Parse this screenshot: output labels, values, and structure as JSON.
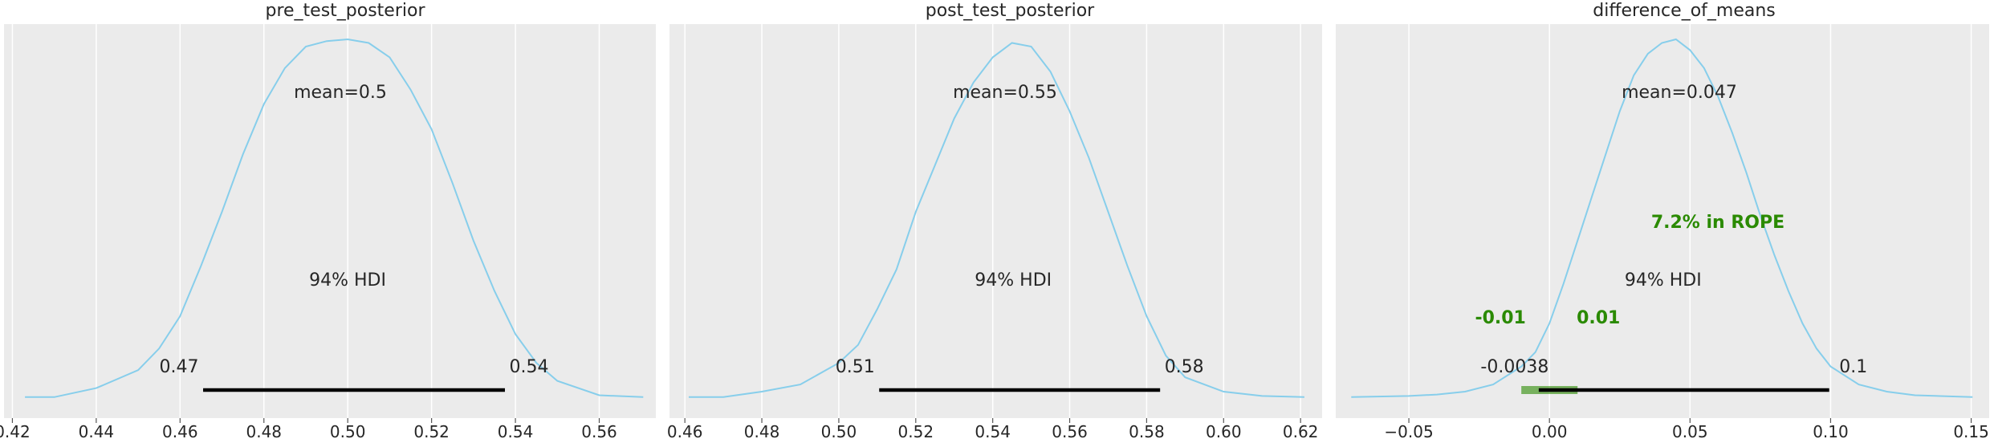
{
  "chart_data": [
    {
      "type": "line",
      "title": "pre_test_posterior",
      "xlim": [
        0.418,
        0.5735
      ],
      "xticks": [
        0.42,
        0.44,
        0.46,
        0.48,
        0.5,
        0.52,
        0.54,
        0.56
      ],
      "xtick_labels": [
        "0.42",
        "0.44",
        "0.46",
        "0.48",
        "0.50",
        "0.52",
        "0.54",
        "0.56"
      ],
      "grid": true,
      "line_color": "#87ceeb",
      "density": {
        "x": [
          0.423,
          0.43,
          0.44,
          0.45,
          0.455,
          0.46,
          0.465,
          0.47,
          0.475,
          0.48,
          0.485,
          0.49,
          0.495,
          0.5,
          0.505,
          0.51,
          0.515,
          0.52,
          0.525,
          0.53,
          0.535,
          0.54,
          0.545,
          0.55,
          0.56,
          0.5705
        ],
        "y": [
          0.005,
          0.005,
          0.03,
          0.08,
          0.14,
          0.23,
          0.37,
          0.52,
          0.68,
          0.82,
          0.92,
          0.98,
          0.995,
          1.0,
          0.99,
          0.95,
          0.86,
          0.75,
          0.6,
          0.44,
          0.3,
          0.18,
          0.1,
          0.05,
          0.01,
          0.005
        ]
      },
      "mean_label": "mean=0.5",
      "hdi_label": "94% HDI",
      "hdi": [
        0.4655,
        0.5375
      ],
      "hdi_low_label": "0.47",
      "hdi_high_label": "0.54"
    },
    {
      "type": "line",
      "title": "post_test_posterior",
      "xlim": [
        0.456,
        0.6256
      ],
      "xticks": [
        0.46,
        0.48,
        0.5,
        0.52,
        0.54,
        0.56,
        0.58,
        0.6,
        0.62
      ],
      "xtick_labels": [
        "0.46",
        "0.48",
        "0.50",
        "0.52",
        "0.54",
        "0.56",
        "0.58",
        "0.60",
        "0.62"
      ],
      "grid": true,
      "line_color": "#87ceeb",
      "density": {
        "x": [
          0.461,
          0.47,
          0.48,
          0.49,
          0.5,
          0.505,
          0.51,
          0.515,
          0.52,
          0.525,
          0.53,
          0.535,
          0.54,
          0.545,
          0.55,
          0.555,
          0.56,
          0.565,
          0.57,
          0.575,
          0.58,
          0.585,
          0.59,
          0.6,
          0.61,
          0.621
        ],
        "y": [
          0.005,
          0.005,
          0.02,
          0.04,
          0.1,
          0.15,
          0.25,
          0.36,
          0.52,
          0.65,
          0.78,
          0.88,
          0.95,
          0.99,
          0.98,
          0.91,
          0.8,
          0.67,
          0.52,
          0.37,
          0.23,
          0.12,
          0.06,
          0.02,
          0.008,
          0.005
        ]
      },
      "mean_label": "mean=0.55",
      "hdi_label": "94% HDI",
      "hdi": [
        0.5105,
        0.5835
      ],
      "hdi_low_label": "0.51",
      "hdi_high_label": "0.58"
    },
    {
      "type": "line",
      "title": "difference_of_means",
      "xlim": [
        -0.076,
        0.1564
      ],
      "xticks": [
        -0.05,
        0.0,
        0.05,
        0.1,
        0.15
      ],
      "xtick_labels": [
        "−0.05",
        "0.00",
        "0.05",
        "0.10",
        "0.15"
      ],
      "grid": true,
      "line_color": "#87ceeb",
      "density": {
        "x": [
          -0.0705,
          -0.05,
          -0.04,
          -0.03,
          -0.02,
          -0.01,
          -0.005,
          0.0,
          0.005,
          0.01,
          0.015,
          0.02,
          0.025,
          0.03,
          0.035,
          0.04,
          0.045,
          0.05,
          0.055,
          0.06,
          0.065,
          0.07,
          0.075,
          0.08,
          0.085,
          0.09,
          0.095,
          0.1,
          0.11,
          0.12,
          0.13,
          0.1505
        ],
        "y": [
          0.005,
          0.008,
          0.012,
          0.02,
          0.04,
          0.09,
          0.13,
          0.21,
          0.32,
          0.44,
          0.56,
          0.68,
          0.8,
          0.9,
          0.96,
          0.99,
          1.0,
          0.97,
          0.92,
          0.84,
          0.74,
          0.63,
          0.51,
          0.4,
          0.3,
          0.21,
          0.14,
          0.09,
          0.04,
          0.02,
          0.01,
          0.005
        ]
      },
      "mean_label": "mean=0.047",
      "hdi_label": "94% HDI",
      "hdi": [
        -0.0038,
        0.0995
      ],
      "hdi_low_label": "-0.0038",
      "hdi_high_label": "0.1",
      "rope": [
        -0.01,
        0.01
      ],
      "rope_low_label": "-0.01",
      "rope_high_label": "0.01",
      "rope_label": "7.2% in ROPE",
      "rope_color": "#2a8a00"
    }
  ]
}
